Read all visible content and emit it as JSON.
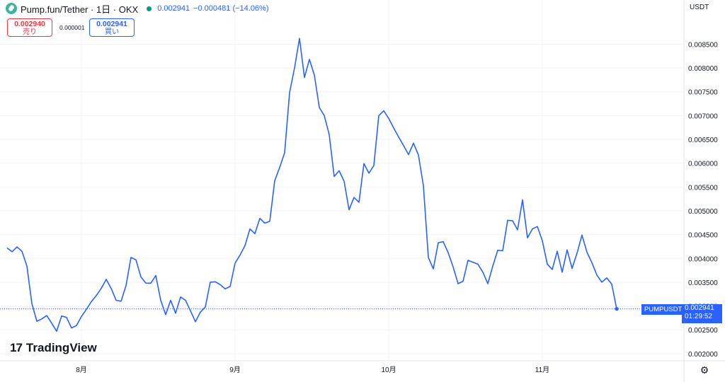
{
  "header": {
    "symbol": "Pump.fun/Tether · 1日 · OKX",
    "price": "0.002941",
    "change": "−0.000481 (−14.06%)"
  },
  "colors": {
    "line": "#2962ff",
    "sell": "#f23645",
    "buy": "#2962ff",
    "dot": "#089981"
  },
  "icons": {
    "logo": "pump-logo-icon",
    "settings": "gear-icon"
  },
  "sell": {
    "price": "0.002940",
    "label": "売り"
  },
  "spread": "0.000001",
  "buy": {
    "price": "0.002941",
    "label": "買い"
  },
  "currency": "USDT",
  "ticker_label": "PUMPUSDT",
  "last_price": "0.002941",
  "countdown": "01:29:52",
  "brand": "TradingView",
  "chart_data": {
    "type": "line",
    "series": [
      {
        "name": "PUMPUSDT",
        "values": [
          0.00422,
          0.00414,
          0.00424,
          0.00415,
          0.00384,
          0.00305,
          0.00268,
          0.00273,
          0.0028,
          0.00264,
          0.00247,
          0.00279,
          0.00276,
          0.00254,
          0.00259,
          0.00278,
          0.00293,
          0.00309,
          0.00322,
          0.00337,
          0.00356,
          0.00337,
          0.00312,
          0.0031,
          0.00343,
          0.00402,
          0.00397,
          0.00361,
          0.00348,
          0.00348,
          0.00364,
          0.00312,
          0.00282,
          0.00312,
          0.00285,
          0.00319,
          0.00312,
          0.0029,
          0.00267,
          0.00287,
          0.00298,
          0.0035,
          0.00351,
          0.00345,
          0.00336,
          0.00341,
          0.0039,
          0.00407,
          0.00427,
          0.00462,
          0.00452,
          0.00484,
          0.00474,
          0.00478,
          0.00563,
          0.00591,
          0.00622,
          0.00748,
          0.008,
          0.00862,
          0.0078,
          0.00818,
          0.00785,
          0.00717,
          0.007,
          0.0066,
          0.00572,
          0.00584,
          0.00562,
          0.00502,
          0.00528,
          0.00518,
          0.00599,
          0.00579,
          0.00595,
          0.007,
          0.0071,
          0.00694,
          0.00674,
          0.00655,
          0.00637,
          0.00618,
          0.00642,
          0.00617,
          0.00553,
          0.00402,
          0.00378,
          0.00433,
          0.00435,
          0.00412,
          0.00382,
          0.00347,
          0.00352,
          0.00396,
          0.00392,
          0.00388,
          0.00371,
          0.00347,
          0.00384,
          0.00417,
          0.00416,
          0.0048,
          0.00479,
          0.0046,
          0.00523,
          0.00443,
          0.00462,
          0.00467,
          0.00437,
          0.00388,
          0.00377,
          0.00415,
          0.00371,
          0.00418,
          0.00379,
          0.00411,
          0.00449,
          0.00413,
          0.00391,
          0.00365,
          0.0035,
          0.00359,
          0.00346,
          0.00294
        ]
      }
    ],
    "x_labels": [
      {
        "label": "8月",
        "index": 15
      },
      {
        "label": "9月",
        "index": 46
      },
      {
        "label": "10月",
        "index": 77
      },
      {
        "label": "11月",
        "index": 108
      }
    ],
    "y_ticks": [
      "0.002000",
      "0.002500",
      "0.003000",
      "0.003500",
      "0.004000",
      "0.004500",
      "0.005000",
      "0.005500",
      "0.006000",
      "0.006500",
      "0.007000",
      "0.007500",
      "0.008000",
      "0.008500"
    ],
    "ylim": [
      0.00185,
      0.0091
    ],
    "xlabel": "",
    "ylabel": "",
    "grid": true,
    "last_value": 0.002941
  }
}
